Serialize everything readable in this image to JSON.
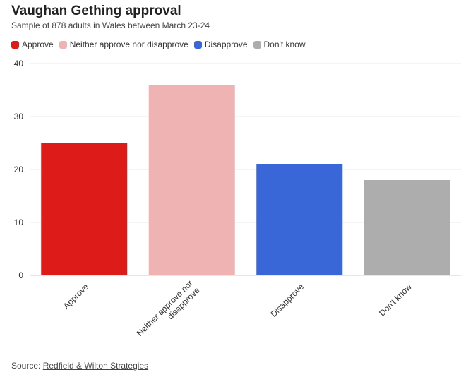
{
  "title": "Vaughan Gething approval",
  "subtitle": "Sample of 878 adults in Wales between March 23-24",
  "source_prefix": "Source: ",
  "source_name": "Redfield & Wilton Strategies",
  "legend": [
    {
      "label": "Approve",
      "color": "#dd1c1a"
    },
    {
      "label": "Neither approve nor disapprove",
      "color": "#efb3b3"
    },
    {
      "label": "Disapprove",
      "color": "#3a67d8"
    },
    {
      "label": "Don't know",
      "color": "#adadad"
    }
  ],
  "chart_data": {
    "type": "bar",
    "categories": [
      "Approve",
      "Neither approve nor disapprove",
      "Disapprove",
      "Don't know"
    ],
    "category_label_lines": [
      [
        "Approve"
      ],
      [
        "Neither approve nor",
        "disapprove"
      ],
      [
        "Disapprove"
      ],
      [
        "Don't know"
      ]
    ],
    "values": [
      25,
      36,
      21,
      18
    ],
    "colors": [
      "#dd1c1a",
      "#efb3b3",
      "#3a67d8",
      "#adadad"
    ],
    "title": "Vaughan Gething approval",
    "subtitle": "Sample of 878 adults in Wales between March 23-24",
    "xlabel": "",
    "ylabel": "",
    "ylim": [
      0,
      40
    ],
    "yticks": [
      0,
      10,
      20,
      30,
      40
    ],
    "grid": true,
    "legend_position": "top-left"
  }
}
